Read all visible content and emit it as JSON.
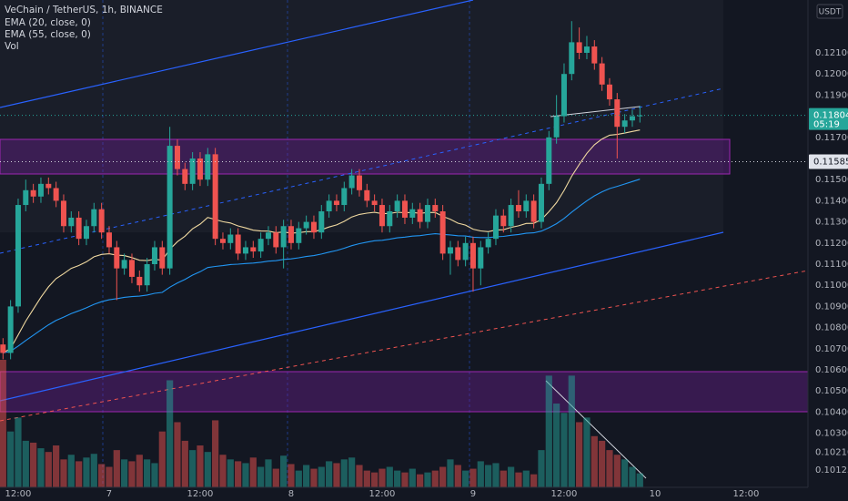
{
  "chart_data": {
    "type": "candlestick",
    "title": "VeChain / TetherUS, 1h, BINANCE",
    "indicators": [
      "EMA (20, close, 0)",
      "EMA (55, close, 0)",
      "Vol"
    ],
    "currency": "USDT",
    "countdown": "05:19",
    "price_lines": [
      {
        "value": 0.11804,
        "label": "0.11804"
      },
      {
        "value": 0.11585,
        "label": "0.11585"
      }
    ],
    "up_color": "#26a69a",
    "down_color": "#ef5350",
    "ylim": [
      0.10044,
      0.1235
    ],
    "yticks": [
      {
        "value": 0.121,
        "label": "0.12100"
      },
      {
        "value": 0.12,
        "label": "0.12000"
      },
      {
        "value": 0.119,
        "label": "0.11900"
      },
      {
        "value": 0.117,
        "label": "0.11700"
      },
      {
        "value": 0.115,
        "label": "0.11500"
      },
      {
        "value": 0.114,
        "label": "0.11400"
      },
      {
        "value": 0.113,
        "label": "0.11300"
      },
      {
        "value": 0.112,
        "label": "0.11200"
      },
      {
        "value": 0.111,
        "label": "0.11100"
      },
      {
        "value": 0.11,
        "label": "0.11000"
      },
      {
        "value": 0.109,
        "label": "0.10900"
      },
      {
        "value": 0.108,
        "label": "0.10800"
      },
      {
        "value": 0.107,
        "label": "0.10700"
      },
      {
        "value": 0.106,
        "label": "0.10600"
      },
      {
        "value": 0.105,
        "label": "0.10500"
      },
      {
        "value": 0.104,
        "label": "0.10400"
      },
      {
        "value": 0.103,
        "label": "0.10300"
      },
      {
        "value": 0.1021,
        "label": "0.10210"
      },
      {
        "value": 0.10125,
        "label": "0.10125"
      }
    ],
    "grid": false,
    "categories": [
      null,
      null,
      "12:00",
      null,
      null,
      null,
      null,
      null,
      null,
      null,
      null,
      null,
      null,
      null,
      "7",
      null,
      null,
      null,
      null,
      null,
      null,
      null,
      null,
      null,
      null,
      null,
      "12:00",
      null,
      null,
      null,
      null,
      null,
      null,
      null,
      null,
      null,
      null,
      null,
      "8",
      null,
      null,
      null,
      null,
      null,
      null,
      null,
      null,
      null,
      null,
      null,
      "12:00",
      null,
      null,
      null,
      null,
      null,
      null,
      null,
      null,
      null,
      null,
      null,
      "9",
      null,
      null,
      null,
      null,
      null,
      null,
      null,
      null,
      null,
      null,
      null,
      "12:00",
      null,
      null,
      null,
      null,
      null,
      null,
      null,
      null,
      null,
      null,
      null,
      "10",
      null,
      null,
      null,
      null,
      null,
      null,
      null,
      null,
      null,
      null,
      null,
      "12:00"
    ],
    "open": [
      0.1072,
      0.1068,
      0.109,
      0.1138,
      0.1145,
      0.1142,
      0.1148,
      0.1146,
      0.114,
      0.1128,
      0.1132,
      0.1122,
      0.1128,
      0.1136,
      0.1125,
      0.1118,
      0.1108,
      0.1112,
      0.1104,
      0.11,
      0.111,
      0.1118,
      0.1108,
      0.1166,
      0.1155,
      0.1148,
      0.116,
      0.115,
      0.1162,
      0.1122,
      0.112,
      0.1124,
      0.1115,
      0.1118,
      0.1116,
      0.1122,
      0.1125,
      0.1118,
      0.1128,
      0.112,
      0.1127,
      0.113,
      0.1125,
      0.1135,
      0.114,
      0.1138,
      0.1146,
      0.1152,
      0.1145,
      0.114,
      0.1138,
      0.1128,
      0.1135,
      0.114,
      0.1132,
      0.1136,
      0.113,
      0.1138,
      0.1135,
      0.1115,
      0.1118,
      0.1112,
      0.112,
      0.1108,
      0.1118,
      0.1122,
      0.1133,
      0.1128,
      0.1138,
      0.1135,
      0.114,
      0.113,
      0.1148,
      0.117,
      0.118,
      0.12,
      0.1215,
      0.121,
      0.1213,
      0.1205,
      0.1195,
      0.1188,
      0.1175,
      0.1178,
      0.118,
      null,
      null,
      null,
      null,
      null,
      null,
      null,
      null,
      null,
      null,
      null,
      null,
      null,
      null
    ],
    "high": [
      0.1075,
      0.1093,
      0.1141,
      0.115,
      0.1148,
      0.1151,
      0.1151,
      0.1149,
      0.1143,
      0.1135,
      0.1135,
      0.1131,
      0.1139,
      0.1139,
      0.1128,
      0.1121,
      0.1115,
      0.1115,
      0.1107,
      0.1113,
      0.1121,
      0.1121,
      0.1175,
      0.1169,
      0.1158,
      0.1163,
      0.1163,
      0.1165,
      0.1165,
      0.1125,
      0.1127,
      0.1127,
      0.1121,
      0.1121,
      0.1125,
      0.1128,
      0.1128,
      0.1131,
      0.1131,
      0.113,
      0.1133,
      0.1133,
      0.1138,
      0.1143,
      0.1143,
      0.1149,
      0.1155,
      0.1155,
      0.1148,
      0.1143,
      0.1141,
      0.1138,
      0.1143,
      0.1143,
      0.1139,
      0.1139,
      0.1141,
      0.1141,
      0.1138,
      0.1121,
      0.1121,
      0.1123,
      0.1123,
      0.1121,
      0.1125,
      0.1136,
      0.1136,
      0.1141,
      0.1145,
      0.1143,
      0.1143,
      0.1151,
      0.1173,
      0.119,
      0.1205,
      0.1225,
      0.1222,
      0.1218,
      0.1216,
      0.1208,
      0.1198,
      0.1191,
      0.1181,
      0.1183,
      0.1185,
      null,
      null,
      null,
      null,
      null,
      null,
      null,
      null,
      null,
      null,
      null,
      null,
      null,
      null
    ],
    "low": [
      0.1065,
      0.1065,
      0.1087,
      0.1135,
      0.1139,
      0.1139,
      0.1143,
      0.1137,
      0.1125,
      0.1125,
      0.1119,
      0.1119,
      0.1125,
      0.1122,
      0.1115,
      0.1093,
      0.1105,
      0.1101,
      0.1097,
      0.1097,
      0.1107,
      0.1105,
      0.1105,
      0.1152,
      0.1145,
      0.1145,
      0.1147,
      0.1147,
      0.1119,
      0.1117,
      0.1117,
      0.1112,
      0.1112,
      0.1113,
      0.1113,
      0.1119,
      0.1115,
      0.1108,
      0.1117,
      0.1117,
      0.1124,
      0.1122,
      0.1122,
      0.1132,
      0.1135,
      0.1135,
      0.1143,
      0.1142,
      0.1137,
      0.1135,
      0.1125,
      0.1125,
      0.1132,
      0.1129,
      0.1129,
      0.1127,
      0.1127,
      0.1132,
      0.1112,
      0.1105,
      0.1109,
      0.1109,
      0.1097,
      0.11,
      0.1115,
      0.1119,
      0.1125,
      0.1125,
      0.1132,
      0.1132,
      0.1127,
      0.1127,
      0.1145,
      0.1167,
      0.1177,
      0.1197,
      0.1207,
      0.1207,
      0.1202,
      0.1192,
      0.1185,
      0.116,
      0.1172,
      0.1175,
      0.1177,
      null,
      null,
      null,
      null,
      null,
      null,
      null,
      null,
      null,
      null,
      null,
      null,
      null,
      null
    ],
    "close": [
      0.1068,
      0.109,
      0.1138,
      0.1145,
      0.1142,
      0.1148,
      0.1146,
      0.114,
      0.1128,
      0.1132,
      0.1122,
      0.1128,
      0.1136,
      0.1125,
      0.1118,
      0.1108,
      0.1112,
      0.1104,
      0.11,
      0.111,
      0.1118,
      0.1108,
      0.1166,
      0.1155,
      0.1148,
      0.116,
      0.115,
      0.1162,
      0.1122,
      0.112,
      0.1124,
      0.1115,
      0.1118,
      0.1116,
      0.1122,
      0.1125,
      0.1118,
      0.1128,
      0.112,
      0.1127,
      0.113,
      0.1125,
      0.1135,
      0.114,
      0.1138,
      0.1146,
      0.1152,
      0.1145,
      0.114,
      0.1138,
      0.1128,
      0.1135,
      0.114,
      0.1132,
      0.1136,
      0.113,
      0.1138,
      0.1135,
      0.1115,
      0.1118,
      0.1112,
      0.112,
      0.1108,
      0.1118,
      0.1122,
      0.1133,
      0.1128,
      0.1138,
      0.1135,
      0.114,
      0.113,
      0.1148,
      0.117,
      0.118,
      0.12,
      0.1215,
      0.121,
      0.1213,
      0.1205,
      0.1195,
      0.1188,
      0.1175,
      0.1178,
      0.118,
      0.11804,
      null,
      null,
      null,
      null,
      null,
      null,
      null,
      null,
      null,
      null,
      null,
      null,
      null,
      null
    ],
    "volume": [
      137,
      60,
      75,
      50,
      48,
      42,
      38,
      45,
      30,
      35,
      28,
      32,
      36,
      25,
      22,
      40,
      30,
      28,
      35,
      30,
      26,
      60,
      115,
      70,
      50,
      40,
      45,
      38,
      72,
      35,
      30,
      28,
      26,
      32,
      22,
      30,
      20,
      34,
      25,
      18,
      24,
      20,
      22,
      28,
      26,
      30,
      32,
      24,
      18,
      16,
      20,
      22,
      18,
      16,
      20,
      14,
      16,
      18,
      22,
      30,
      24,
      18,
      20,
      28,
      24,
      26,
      18,
      22,
      16,
      18,
      14,
      40,
      120,
      90,
      80,
      120,
      70,
      75,
      55,
      50,
      40,
      35,
      30,
      22,
      15,
      null,
      null,
      null,
      null,
      null,
      null,
      null,
      null,
      null,
      null,
      null,
      null,
      null,
      null
    ]
  }
}
